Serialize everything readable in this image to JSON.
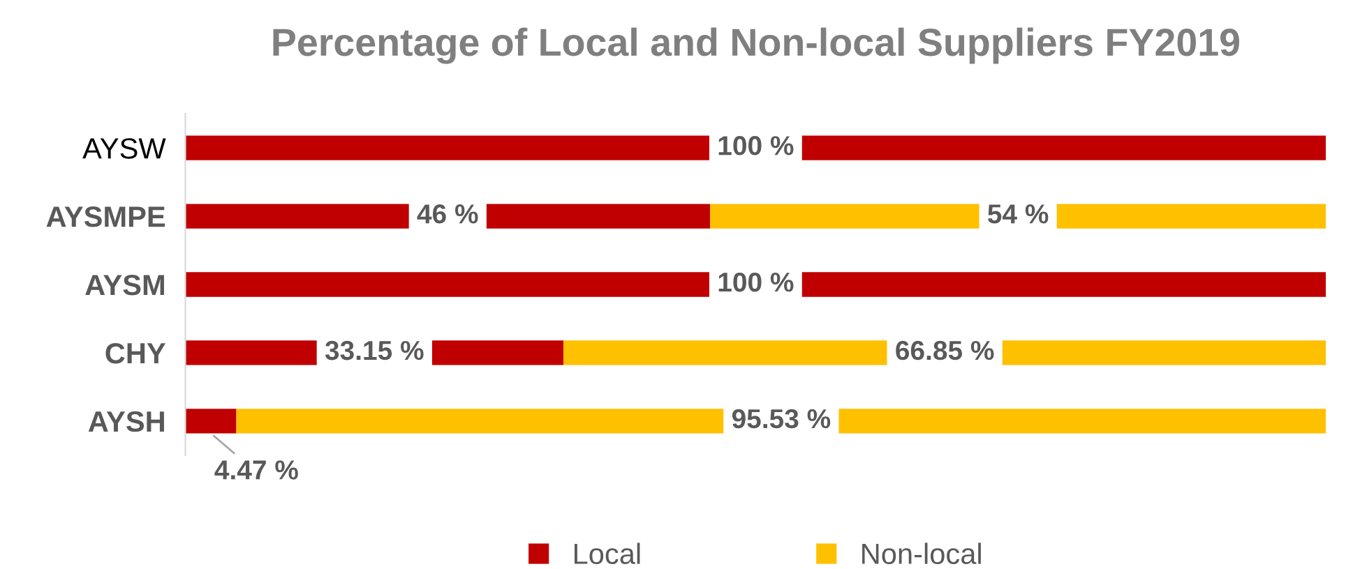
{
  "chart_data": {
    "type": "bar",
    "orientation": "horizontal",
    "stacked": true,
    "title": "Percentage of Local and Non-local Suppliers FY2019",
    "categories": [
      "AYSW",
      "AYSMPE",
      "AYSM",
      "CHY",
      "AYSH"
    ],
    "series": [
      {
        "name": "Local",
        "color": "#c00000",
        "values": [
          100,
          46,
          100,
          33.15,
          4.47
        ],
        "value_labels": [
          "100 %",
          "46 %",
          "100 %",
          "33.15 %",
          "4.47 %"
        ]
      },
      {
        "name": "Non-local",
        "color": "#ffc000",
        "values": [
          0,
          54,
          0,
          66.85,
          95.53
        ],
        "value_labels": [
          null,
          "54 %",
          null,
          "66.85 %",
          "95.53 %"
        ]
      }
    ],
    "legend": "bottom",
    "grid": false
  }
}
